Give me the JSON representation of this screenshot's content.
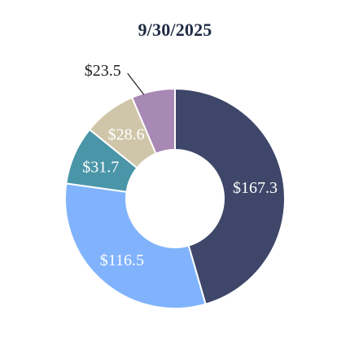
{
  "chart_data": {
    "type": "pie",
    "title": "9/30/2025",
    "categories": [
      "",
      "",
      "",
      "",
      ""
    ],
    "values": [
      167.3,
      116.5,
      31.7,
      28.6,
      23.5
    ],
    "labels": [
      "$167.3",
      "$116.5",
      "$31.7",
      "$28.6",
      "$23.5"
    ],
    "colors": [
      "#3e4669",
      "#80b3fb",
      "#4a95a8",
      "#cfc6a9",
      "#a888b5"
    ],
    "label_colors": [
      "#ffffff",
      "#ffffff",
      "#ffffff",
      "#ffffff",
      "#1f1f1f"
    ],
    "donut": true,
    "legend": "none"
  }
}
